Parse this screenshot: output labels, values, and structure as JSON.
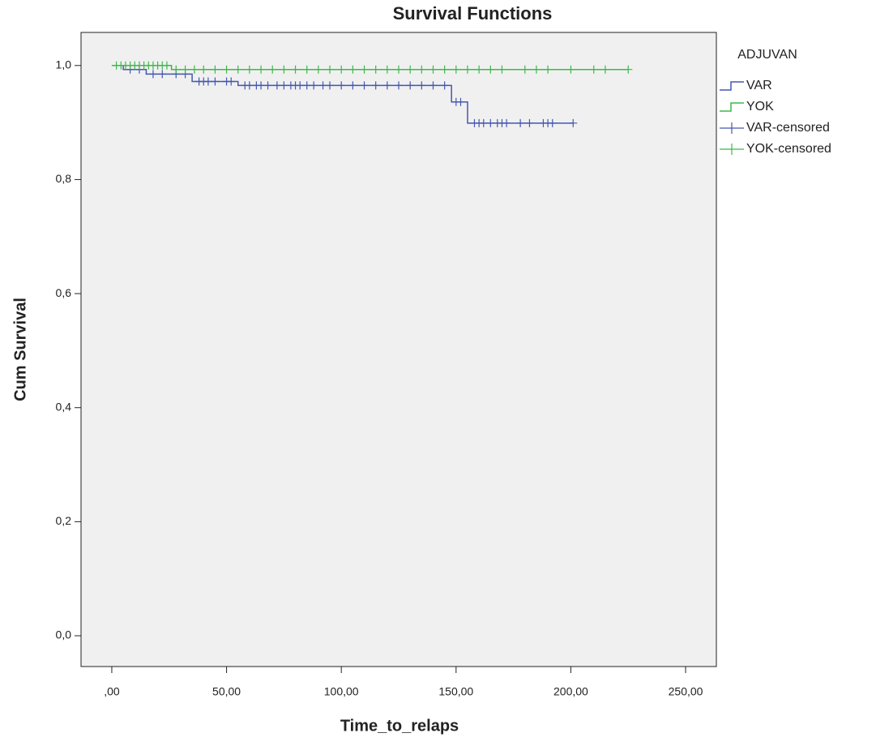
{
  "chart_data": {
    "type": "survival",
    "title": "Survival Functions",
    "x_label": "Time_to_relaps",
    "y_label": "Cum Survival",
    "legend_title": "ADJUVAN",
    "xlim": [
      -13.4,
      263.4
    ],
    "ylim": [
      -0.054,
      1.058
    ],
    "xticks": [
      {
        "value": 0,
        "label": ",00"
      },
      {
        "value": 50,
        "label": "50,00"
      },
      {
        "value": 100,
        "label": "100,00"
      },
      {
        "value": 150,
        "label": "150,00"
      },
      {
        "value": 200,
        "label": "200,00"
      },
      {
        "value": 250,
        "label": "250,00"
      }
    ],
    "yticks": [
      {
        "value": 0,
        "label": "0,0"
      },
      {
        "value": 0.2,
        "label": "0,2"
      },
      {
        "value": 0.4,
        "label": "0,4"
      },
      {
        "value": 0.6,
        "label": "0,6"
      },
      {
        "value": 0.8,
        "label": "0,8"
      },
      {
        "value": 1.0,
        "label": "1,0"
      }
    ],
    "series": [
      {
        "name": "VAR",
        "color": "#4457b0",
        "mark": "line",
        "x": [
          0,
          5,
          5,
          15,
          15,
          35,
          35,
          55,
          55,
          148,
          148,
          155,
          155,
          201
        ],
        "values": [
          1,
          1,
          0.993,
          0.993,
          0.985,
          0.985,
          0.972,
          0.972,
          0.965,
          0.965,
          0.936,
          0.936,
          0.899,
          0.899
        ]
      },
      {
        "name": "YOK",
        "color": "#3cb84a",
        "mark": "line",
        "x": [
          0,
          26,
          26,
          225
        ],
        "values": [
          1,
          1,
          0.993,
          0.993
        ]
      },
      {
        "name": "VAR-censored",
        "color": "#4457b0",
        "mark": "cross",
        "x": [
          8,
          12,
          18,
          22,
          28,
          32,
          38,
          40,
          42,
          45,
          50,
          52,
          58,
          60,
          63,
          65,
          68,
          72,
          75,
          78,
          80,
          82,
          85,
          88,
          92,
          95,
          100,
          105,
          110,
          115,
          120,
          125,
          130,
          135,
          140,
          145,
          150,
          152,
          158,
          160,
          162,
          165,
          168,
          170,
          172,
          178,
          182,
          188,
          190,
          192,
          201
        ],
        "values": [
          0.993,
          0.993,
          0.985,
          0.985,
          0.985,
          0.985,
          0.972,
          0.972,
          0.972,
          0.972,
          0.972,
          0.972,
          0.965,
          0.965,
          0.965,
          0.965,
          0.965,
          0.965,
          0.965,
          0.965,
          0.965,
          0.965,
          0.965,
          0.965,
          0.965,
          0.965,
          0.965,
          0.965,
          0.965,
          0.965,
          0.965,
          0.965,
          0.965,
          0.965,
          0.965,
          0.965,
          0.936,
          0.936,
          0.899,
          0.899,
          0.899,
          0.899,
          0.899,
          0.899,
          0.899,
          0.899,
          0.899,
          0.899,
          0.899,
          0.899,
          0.899
        ]
      },
      {
        "name": "YOK-censored",
        "color": "#3cb84a",
        "mark": "cross",
        "x": [
          2,
          4,
          6,
          8,
          10,
          12,
          14,
          16,
          18,
          20,
          22,
          24,
          28,
          32,
          36,
          40,
          45,
          50,
          55,
          60,
          65,
          70,
          75,
          80,
          85,
          90,
          95,
          100,
          105,
          110,
          115,
          120,
          125,
          130,
          135,
          140,
          145,
          150,
          155,
          160,
          165,
          170,
          180,
          185,
          190,
          200,
          210,
          215,
          225
        ],
        "values": [
          1,
          1,
          1,
          1,
          1,
          1,
          1,
          1,
          1,
          1,
          1,
          1,
          0.993,
          0.993,
          0.993,
          0.993,
          0.993,
          0.993,
          0.993,
          0.993,
          0.993,
          0.993,
          0.993,
          0.993,
          0.993,
          0.993,
          0.993,
          0.993,
          0.993,
          0.993,
          0.993,
          0.993,
          0.993,
          0.993,
          0.993,
          0.993,
          0.993,
          0.993,
          0.993,
          0.993,
          0.993,
          0.993,
          0.993,
          0.993,
          0.993,
          0.993,
          0.993,
          0.993,
          0.993
        ]
      }
    ]
  }
}
